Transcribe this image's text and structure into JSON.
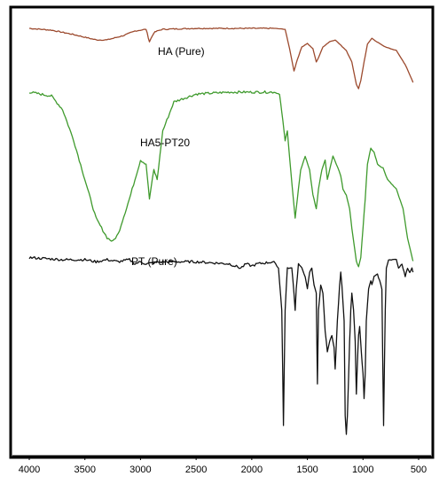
{
  "chart_data": {
    "type": "line",
    "title": "",
    "xlabel": "",
    "ylabel": "",
    "xlim": [
      4000,
      500
    ],
    "x_reversed": true,
    "y_ticks_shown": false,
    "grid": false,
    "x_ticks": [
      4000,
      3500,
      3000,
      2500,
      2000,
      1500,
      1000,
      500
    ],
    "x_tick_labels": [
      "4000",
      "3500",
      "3000",
      "2500",
      "2000",
      "1500",
      "1000",
      "500"
    ],
    "series": [
      {
        "name": "HA (Pure)",
        "color": "#9c4a2e",
        "baseline": 0.93,
        "points": [
          [
            4000,
            0.93
          ],
          [
            3800,
            0.91
          ],
          [
            3600,
            0.86
          ],
          [
            3400,
            0.8
          ],
          [
            3300,
            0.8
          ],
          [
            3150,
            0.85
          ],
          [
            3050,
            0.9
          ],
          [
            2950,
            0.92
          ],
          [
            2920,
            0.78
          ],
          [
            2880,
            0.88
          ],
          [
            2850,
            0.9
          ],
          [
            2800,
            0.92
          ],
          [
            2500,
            0.93
          ],
          [
            2150,
            0.93
          ],
          [
            2000,
            0.93
          ],
          [
            1800,
            0.93
          ],
          [
            1700,
            0.92
          ],
          [
            1660,
            0.7
          ],
          [
            1620,
            0.45
          ],
          [
            1590,
            0.58
          ],
          [
            1550,
            0.72
          ],
          [
            1500,
            0.76
          ],
          [
            1450,
            0.7
          ],
          [
            1420,
            0.55
          ],
          [
            1400,
            0.6
          ],
          [
            1360,
            0.72
          ],
          [
            1300,
            0.78
          ],
          [
            1250,
            0.8
          ],
          [
            1200,
            0.74
          ],
          [
            1150,
            0.68
          ],
          [
            1100,
            0.55
          ],
          [
            1060,
            0.3
          ],
          [
            1040,
            0.25
          ],
          [
            1020,
            0.34
          ],
          [
            990,
            0.55
          ],
          [
            960,
            0.75
          ],
          [
            920,
            0.82
          ],
          [
            880,
            0.78
          ],
          [
            850,
            0.76
          ],
          [
            800,
            0.72
          ],
          [
            700,
            0.68
          ],
          [
            620,
            0.52
          ],
          [
            560,
            0.35
          ],
          [
            550,
            0.32
          ]
        ]
      },
      {
        "name": "HA5-PT20",
        "color": "#3f9a2d",
        "baseline": 0.95,
        "points": [
          [
            4000,
            0.95
          ],
          [
            3800,
            0.93
          ],
          [
            3700,
            0.86
          ],
          [
            3600,
            0.7
          ],
          [
            3500,
            0.5
          ],
          [
            3400,
            0.3
          ],
          [
            3300,
            0.2
          ],
          [
            3250,
            0.18
          ],
          [
            3200,
            0.22
          ],
          [
            3100,
            0.4
          ],
          [
            3000,
            0.6
          ],
          [
            2950,
            0.58
          ],
          [
            2920,
            0.4
          ],
          [
            2880,
            0.55
          ],
          [
            2850,
            0.5
          ],
          [
            2800,
            0.75
          ],
          [
            2700,
            0.9
          ],
          [
            2500,
            0.94
          ],
          [
            2200,
            0.95
          ],
          [
            2000,
            0.95
          ],
          [
            1800,
            0.95
          ],
          [
            1750,
            0.94
          ],
          [
            1720,
            0.8
          ],
          [
            1700,
            0.7
          ],
          [
            1680,
            0.75
          ],
          [
            1650,
            0.55
          ],
          [
            1610,
            0.3
          ],
          [
            1590,
            0.4
          ],
          [
            1560,
            0.55
          ],
          [
            1520,
            0.62
          ],
          [
            1480,
            0.55
          ],
          [
            1450,
            0.42
          ],
          [
            1420,
            0.35
          ],
          [
            1400,
            0.45
          ],
          [
            1370,
            0.55
          ],
          [
            1340,
            0.6
          ],
          [
            1320,
            0.5
          ],
          [
            1300,
            0.55
          ],
          [
            1270,
            0.62
          ],
          [
            1240,
            0.58
          ],
          [
            1200,
            0.52
          ],
          [
            1180,
            0.45
          ],
          [
            1150,
            0.42
          ],
          [
            1120,
            0.35
          ],
          [
            1100,
            0.25
          ],
          [
            1060,
            0.08
          ],
          [
            1040,
            0.05
          ],
          [
            1020,
            0.1
          ],
          [
            1000,
            0.25
          ],
          [
            980,
            0.4
          ],
          [
            960,
            0.58
          ],
          [
            930,
            0.66
          ],
          [
            900,
            0.64
          ],
          [
            870,
            0.58
          ],
          [
            850,
            0.57
          ],
          [
            820,
            0.56
          ],
          [
            780,
            0.5
          ],
          [
            700,
            0.45
          ],
          [
            640,
            0.35
          ],
          [
            600,
            0.2
          ],
          [
            560,
            0.1
          ],
          [
            550,
            0.08
          ]
        ]
      },
      {
        "name": "PT (Pure)",
        "color": "#111111",
        "baseline": 0.85,
        "points": [
          [
            4000,
            0.85
          ],
          [
            3700,
            0.84
          ],
          [
            3500,
            0.84
          ],
          [
            3400,
            0.83
          ],
          [
            3300,
            0.84
          ],
          [
            3200,
            0.83
          ],
          [
            3100,
            0.84
          ],
          [
            3050,
            0.82
          ],
          [
            3000,
            0.83
          ],
          [
            2950,
            0.82
          ],
          [
            2800,
            0.83
          ],
          [
            2500,
            0.83
          ],
          [
            2200,
            0.82
          ],
          [
            2100,
            0.8
          ],
          [
            2050,
            0.82
          ],
          [
            2000,
            0.81
          ],
          [
            1950,
            0.82
          ],
          [
            1800,
            0.83
          ],
          [
            1760,
            0.8
          ],
          [
            1730,
            0.6
          ],
          [
            1715,
            0.05
          ],
          [
            1700,
            0.6
          ],
          [
            1680,
            0.8
          ],
          [
            1640,
            0.8
          ],
          [
            1620,
            0.68
          ],
          [
            1610,
            0.6
          ],
          [
            1600,
            0.7
          ],
          [
            1580,
            0.82
          ],
          [
            1550,
            0.8
          ],
          [
            1520,
            0.76
          ],
          [
            1500,
            0.7
          ],
          [
            1480,
            0.78
          ],
          [
            1460,
            0.8
          ],
          [
            1440,
            0.72
          ],
          [
            1420,
            0.68
          ],
          [
            1410,
            0.25
          ],
          [
            1400,
            0.6
          ],
          [
            1380,
            0.72
          ],
          [
            1360,
            0.68
          ],
          [
            1340,
            0.5
          ],
          [
            1320,
            0.4
          ],
          [
            1300,
            0.45
          ],
          [
            1280,
            0.48
          ],
          [
            1260,
            0.42
          ],
          [
            1250,
            0.32
          ],
          [
            1230,
            0.55
          ],
          [
            1210,
            0.72
          ],
          [
            1200,
            0.78
          ],
          [
            1190,
            0.72
          ],
          [
            1170,
            0.55
          ],
          [
            1160,
            0.1
          ],
          [
            1150,
            0.01
          ],
          [
            1140,
            0.1
          ],
          [
            1120,
            0.45
          ],
          [
            1110,
            0.6
          ],
          [
            1100,
            0.68
          ],
          [
            1085,
            0.6
          ],
          [
            1070,
            0.45
          ],
          [
            1060,
            0.2
          ],
          [
            1050,
            0.35
          ],
          [
            1040,
            0.48
          ],
          [
            1030,
            0.52
          ],
          [
            1015,
            0.4
          ],
          [
            1000,
            0.3
          ],
          [
            990,
            0.18
          ],
          [
            980,
            0.3
          ],
          [
            970,
            0.55
          ],
          [
            950,
            0.7
          ],
          [
            930,
            0.74
          ],
          [
            920,
            0.72
          ],
          [
            900,
            0.76
          ],
          [
            870,
            0.77
          ],
          [
            850,
            0.74
          ],
          [
            830,
            0.7
          ],
          [
            815,
            0.05
          ],
          [
            800,
            0.6
          ],
          [
            790,
            0.8
          ],
          [
            770,
            0.84
          ],
          [
            700,
            0.84
          ],
          [
            680,
            0.8
          ],
          [
            650,
            0.82
          ],
          [
            620,
            0.76
          ],
          [
            600,
            0.8
          ],
          [
            580,
            0.78
          ],
          [
            560,
            0.8
          ],
          [
            550,
            0.78
          ]
        ]
      }
    ]
  },
  "labels": {
    "ha": "HA (Pure)",
    "ha5pt20": "HA5-PT20",
    "pt": "PT (Pure)"
  },
  "colors": {
    "frame": "#000000",
    "background": "#ffffff"
  }
}
